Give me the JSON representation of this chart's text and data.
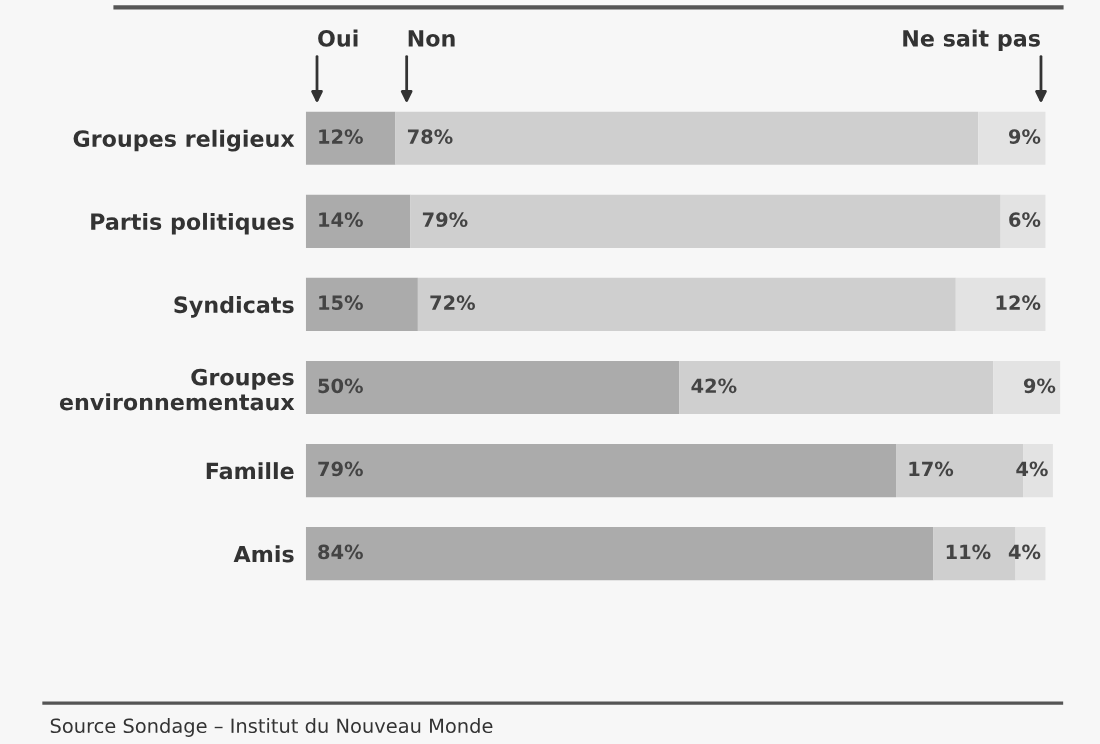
{
  "chart_data": {
    "type": "bar",
    "orientation": "horizontal",
    "stacked": true,
    "legend": false,
    "categories": [
      "Groupes religieux",
      "Partis politiques",
      "Syndicats",
      "Groupes\nenvironnementaux",
      "Famille",
      "Amis"
    ],
    "series": [
      {
        "name": "Oui",
        "color": "#ababab",
        "values": [
          12,
          14,
          15,
          50,
          79,
          84
        ],
        "value_labels": [
          "12%",
          "14%",
          "15%",
          "50%",
          "79%",
          "84%"
        ]
      },
      {
        "name": "Non",
        "color": "#cfcfcf",
        "values": [
          78,
          79,
          72,
          42,
          17,
          11
        ],
        "value_labels": [
          "78%",
          "79%",
          "72%",
          "42%",
          "17%",
          "11%"
        ]
      },
      {
        "name": "Ne sait pas",
        "color": "#e3e3e3",
        "values": [
          9,
          6,
          12,
          9,
          4,
          4
        ],
        "value_labels": [
          "9%",
          "6%",
          "12%",
          "9%",
          "4%",
          "4%"
        ]
      }
    ],
    "annotations": [
      "Source Sondage – Institut du Nouveau Monde"
    ]
  }
}
